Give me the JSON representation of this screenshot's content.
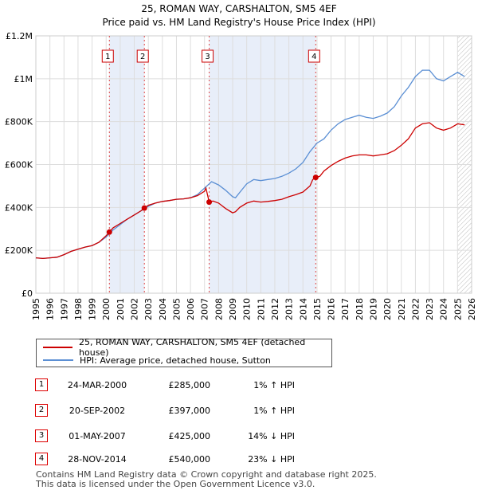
{
  "chart_data": {
    "type": "line",
    "title": "25, ROMAN WAY, CARSHALTON, SM5 4EF",
    "subtitle": "Price paid vs. HM Land Registry's House Price Index (HPI)",
    "xlabel": "",
    "ylabel": "",
    "xlim": [
      1995,
      2026
    ],
    "ylim": [
      0,
      1200000
    ],
    "x_ticks": [
      1995,
      1996,
      1997,
      1998,
      1999,
      2000,
      2001,
      2002,
      2003,
      2004,
      2005,
      2006,
      2007,
      2008,
      2009,
      2010,
      2011,
      2012,
      2013,
      2014,
      2015,
      2016,
      2017,
      2018,
      2019,
      2020,
      2021,
      2022,
      2023,
      2024,
      2025,
      2026
    ],
    "y_ticks": [
      {
        "value": 0,
        "label": "£0"
      },
      {
        "value": 200000,
        "label": "£200K"
      },
      {
        "value": 400000,
        "label": "£400K"
      },
      {
        "value": 600000,
        "label": "£600K"
      },
      {
        "value": 800000,
        "label": "£800K"
      },
      {
        "value": 1000000,
        "label": "£1M"
      },
      {
        "value": 1200000,
        "label": "£1.2M"
      }
    ],
    "grid": true,
    "shaded_ranges": [
      [
        2000.23,
        2002.72
      ],
      [
        2007.33,
        2014.91
      ]
    ],
    "future_hatch_start": 2025.0,
    "series": [
      {
        "name": "25, ROMAN WAY, CARSHALTON, SM5 4EF (detached house)",
        "color": "#cc0000",
        "x": [
          1995.0,
          1995.5,
          1996.0,
          1996.5,
          1997.0,
          1997.5,
          1998.0,
          1998.5,
          1999.0,
          1999.5,
          2000.0,
          2000.23,
          2000.5,
          2001.0,
          2001.5,
          2002.0,
          2002.5,
          2002.72,
          2003.0,
          2003.5,
          2004.0,
          2004.5,
          2005.0,
          2005.5,
          2006.0,
          2006.5,
          2007.0,
          2007.1,
          2007.33,
          2007.6,
          2008.0,
          2008.5,
          2009.0,
          2009.2,
          2009.5,
          2010.0,
          2010.5,
          2011.0,
          2011.5,
          2012.0,
          2012.5,
          2013.0,
          2013.5,
          2014.0,
          2014.5,
          2014.7,
          2014.91,
          2015.2,
          2015.5,
          2016.0,
          2016.5,
          2017.0,
          2017.5,
          2018.0,
          2018.5,
          2019.0,
          2019.5,
          2020.0,
          2020.5,
          2021.0,
          2021.5,
          2022.0,
          2022.5,
          2023.0,
          2023.5,
          2024.0,
          2024.5,
          2025.0,
          2025.5
        ],
        "values": [
          165000,
          162000,
          165000,
          168000,
          180000,
          195000,
          205000,
          215000,
          222000,
          238000,
          268000,
          285000,
          305000,
          325000,
          345000,
          365000,
          385000,
          397000,
          410000,
          420000,
          428000,
          432000,
          438000,
          440000,
          445000,
          455000,
          475000,
          490000,
          425000,
          430000,
          420000,
          395000,
          375000,
          380000,
          400000,
          420000,
          430000,
          425000,
          428000,
          432000,
          438000,
          450000,
          460000,
          472000,
          500000,
          530000,
          540000,
          545000,
          570000,
          595000,
          615000,
          630000,
          640000,
          645000,
          645000,
          640000,
          645000,
          650000,
          665000,
          690000,
          720000,
          770000,
          790000,
          795000,
          770000,
          760000,
          770000,
          790000,
          785000
        ]
      },
      {
        "name": "HPI: Average price, detached house, Sutton",
        "color": "#5b8fd4",
        "x": [
          1995.0,
          1995.5,
          1996.0,
          1996.5,
          1997.0,
          1997.5,
          1998.0,
          1998.5,
          1999.0,
          1999.5,
          2000.0,
          2000.5,
          2001.0,
          2001.5,
          2002.0,
          2002.5,
          2003.0,
          2003.5,
          2004.0,
          2004.5,
          2005.0,
          2005.5,
          2006.0,
          2006.5,
          2007.0,
          2007.5,
          2008.0,
          2008.5,
          2009.0,
          2009.2,
          2009.5,
          2010.0,
          2010.5,
          2011.0,
          2011.5,
          2012.0,
          2012.5,
          2013.0,
          2013.5,
          2014.0,
          2014.5,
          2015.0,
          2015.5,
          2016.0,
          2016.5,
          2017.0,
          2017.5,
          2018.0,
          2018.5,
          2019.0,
          2019.5,
          2020.0,
          2020.5,
          2021.0,
          2021.5,
          2022.0,
          2022.5,
          2023.0,
          2023.5,
          2024.0,
          2024.5,
          2025.0,
          2025.5
        ],
        "values": [
          165000,
          162000,
          165000,
          168000,
          180000,
          195000,
          205000,
          215000,
          222000,
          238000,
          262000,
          295000,
          320000,
          345000,
          365000,
          385000,
          405000,
          420000,
          428000,
          432000,
          438000,
          440000,
          445000,
          460000,
          490000,
          520000,
          505000,
          480000,
          450000,
          445000,
          470000,
          510000,
          530000,
          525000,
          530000,
          535000,
          545000,
          560000,
          580000,
          610000,
          660000,
          700000,
          720000,
          760000,
          790000,
          810000,
          820000,
          830000,
          820000,
          815000,
          825000,
          840000,
          870000,
          920000,
          960000,
          1010000,
          1040000,
          1040000,
          1000000,
          990000,
          1010000,
          1030000,
          1010000
        ]
      }
    ],
    "sales": [
      {
        "label": "1",
        "x": 2000.23,
        "value": 285000
      },
      {
        "label": "2",
        "x": 2002.72,
        "value": 397000
      },
      {
        "label": "3",
        "x": 2007.33,
        "value": 425000
      },
      {
        "label": "4",
        "x": 2014.91,
        "value": 540000
      }
    ]
  },
  "sales_table": [
    {
      "num": "1",
      "date": "24-MAR-2000",
      "price": "£285,000",
      "hpi": "1% ↑ HPI"
    },
    {
      "num": "2",
      "date": "20-SEP-2002",
      "price": "£397,000",
      "hpi": "1% ↑ HPI"
    },
    {
      "num": "3",
      "date": "01-MAY-2007",
      "price": "£425,000",
      "hpi": "14% ↓ HPI"
    },
    {
      "num": "4",
      "date": "28-NOV-2014",
      "price": "£540,000",
      "hpi": "23% ↓ HPI"
    }
  ],
  "footer": {
    "line1": "Contains HM Land Registry data © Crown copyright and database right 2025.",
    "line2": "This data is licensed under the Open Government Licence v3.0."
  }
}
